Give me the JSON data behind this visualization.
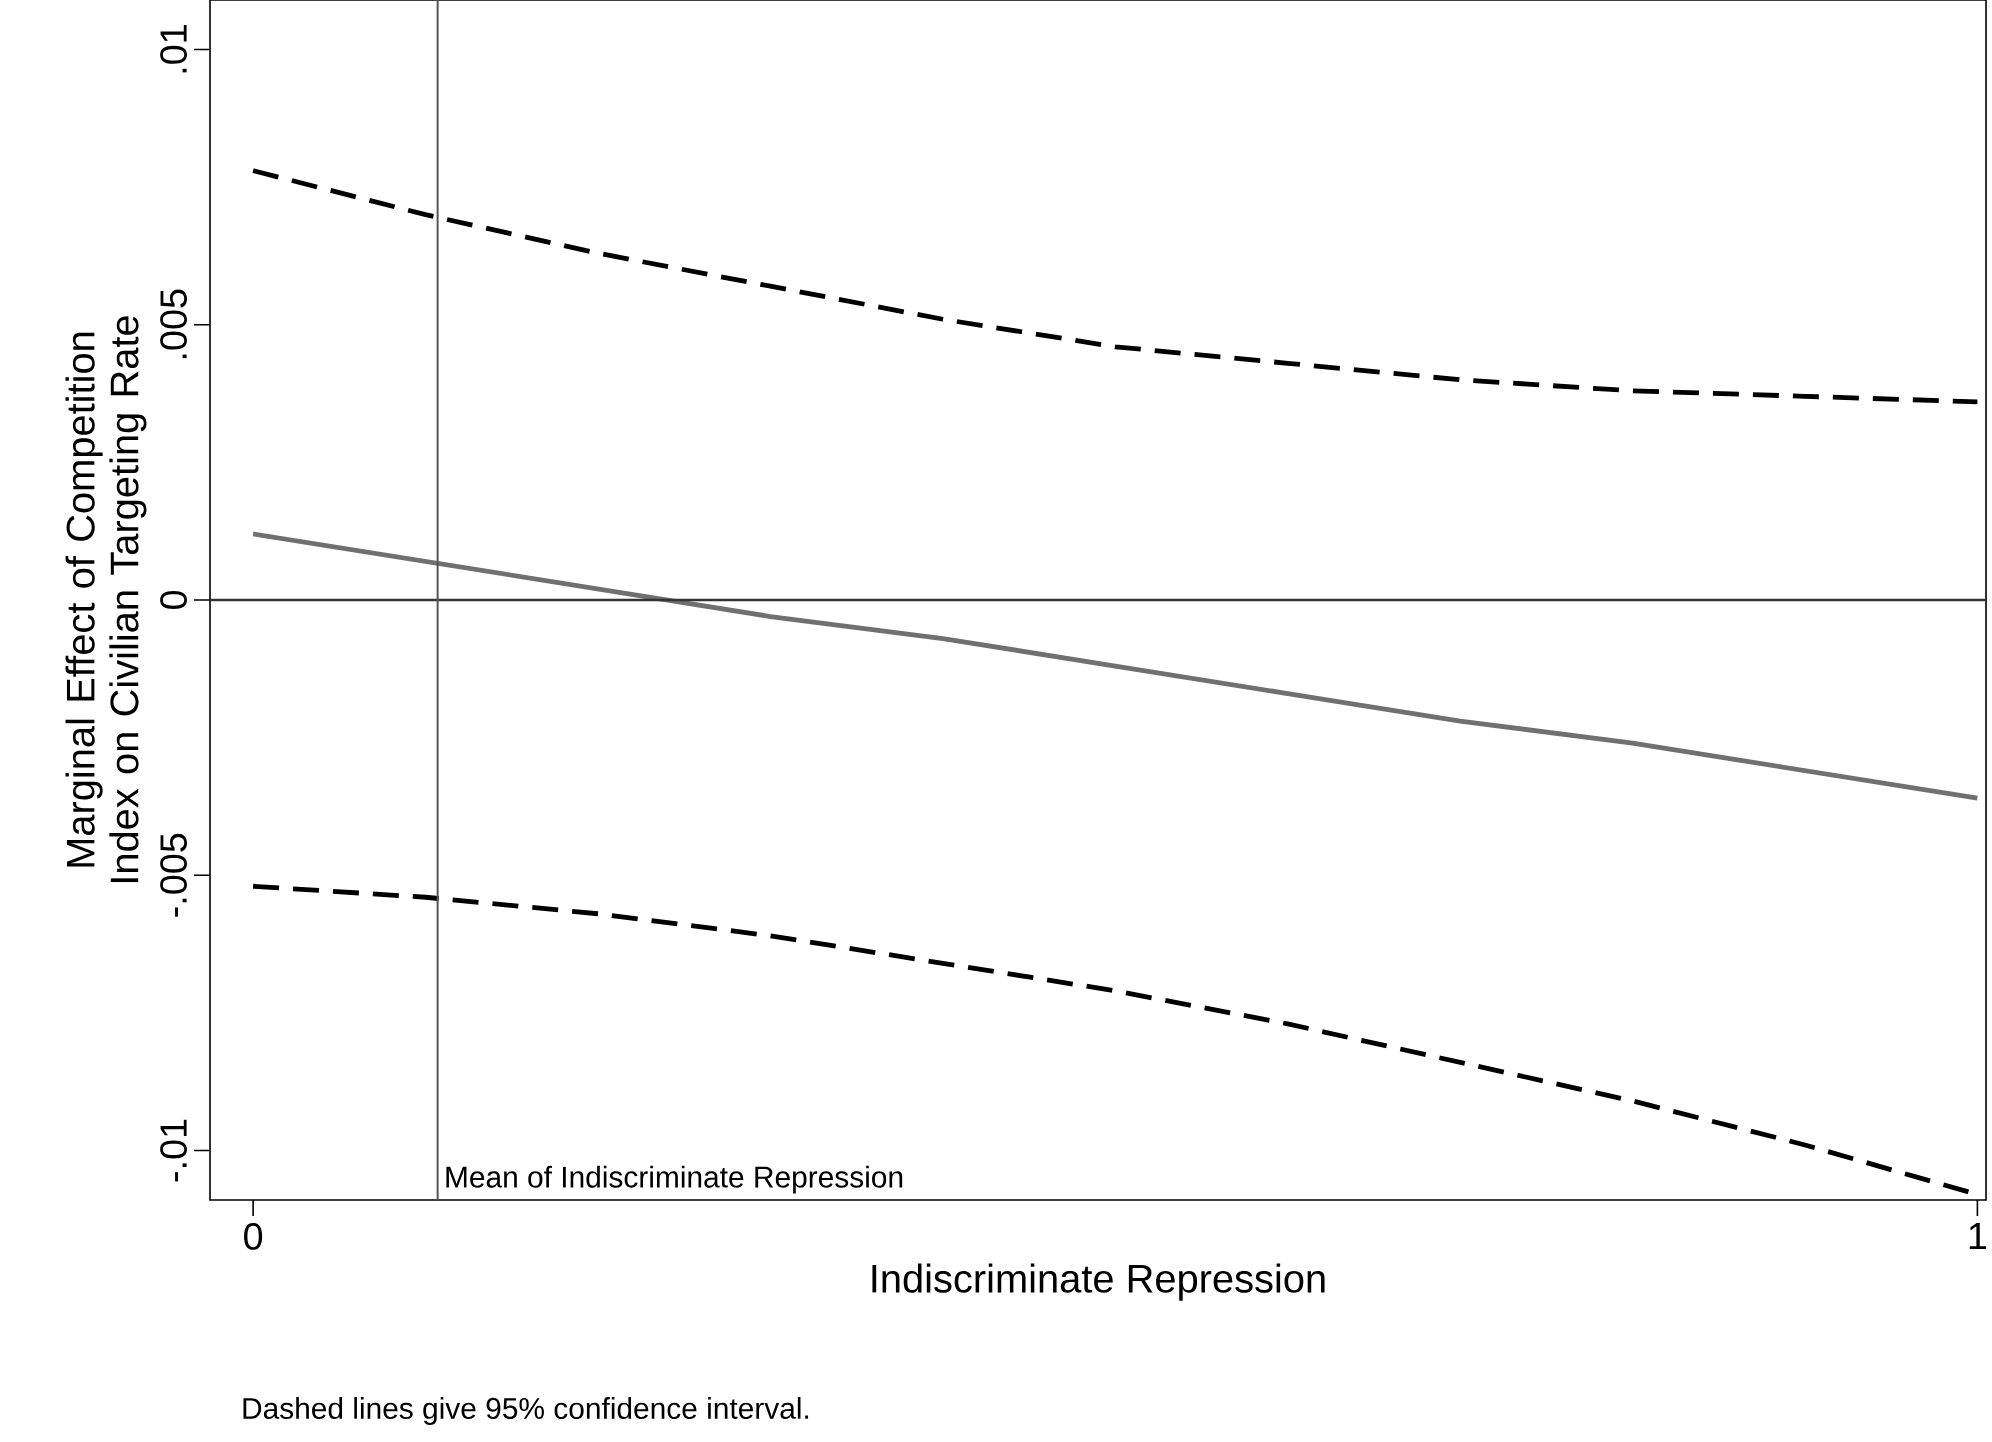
{
  "chart_data": {
    "type": "line",
    "xlabel": "Indiscriminate Repression",
    "ylabel": "Marginal Effect of Competition Index on Civilian Targeting Rate",
    "x": [
      0,
      0.1,
      0.2,
      0.3,
      0.4,
      0.5,
      0.6,
      0.7,
      0.8,
      0.9,
      1
    ],
    "series": [
      {
        "color": "#707070",
        "line_style": "solid",
        "values": [
          0.0012,
          0.0007,
          0.0002,
          -0.0003,
          -0.0007,
          -0.0012,
          -0.0017,
          -0.0022,
          -0.0026,
          -0.0031,
          -0.0036
        ]
      },
      {
        "color": "#000000",
        "line_style": "dashed",
        "values": [
          0.0078,
          0.007,
          0.0063,
          0.0057,
          0.0051,
          0.0046,
          0.0043,
          0.004,
          0.0038,
          0.0037,
          0.0036
        ]
      },
      {
        "color": "#000000",
        "line_style": "dashed",
        "values": [
          -0.0052,
          -0.0054,
          -0.0057,
          -0.0061,
          -0.0066,
          -0.0071,
          -0.0077,
          -0.0084,
          -0.0091,
          -0.0099,
          -0.0108
        ]
      }
    ],
    "xlim": [
      -0.025,
      1.005
    ],
    "ylim": [
      -0.0109,
      0.0109
    ],
    "xticks": [
      0,
      1
    ],
    "yticks": [
      {
        "value": -0.01,
        "label": "-.01"
      },
      {
        "value": -0.005,
        "label": "-.005"
      },
      0,
      {
        "value": 0.005,
        "label": ".005"
      },
      {
        "value": 0.01,
        "label": ".01"
      }
    ],
    "ref_lines": [
      {
        "axis": "y",
        "value": 0,
        "color": "#333333"
      },
      {
        "axis": "x",
        "value": 0.107,
        "label": "Mean of Indiscriminate Repression",
        "color": "#555555"
      }
    ],
    "grid": false,
    "marker": "none",
    "annotations": [
      "Dashed lines give 95% confidence interval."
    ]
  }
}
